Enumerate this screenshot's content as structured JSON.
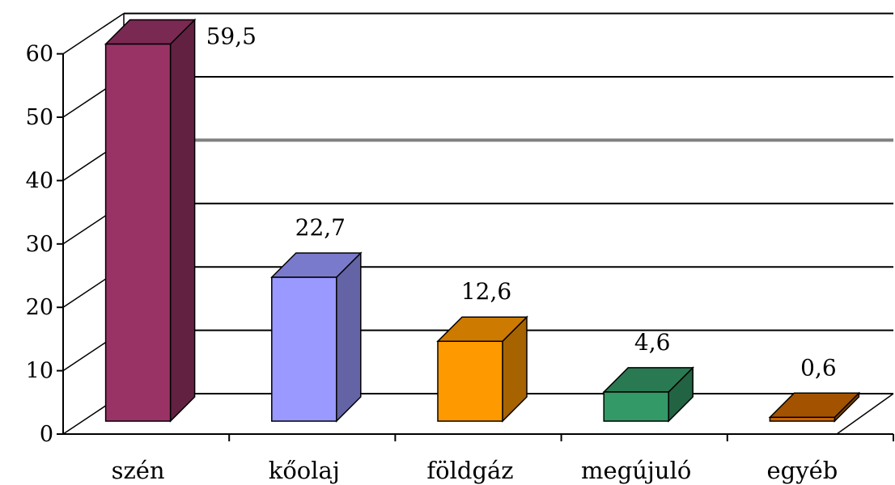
{
  "chart_data": {
    "type": "bar",
    "categories": [
      "szén",
      "kőolaj",
      "földgáz",
      "megújuló",
      "egyéb"
    ],
    "values": [
      59.5,
      22.7,
      12.6,
      4.6,
      0.6
    ],
    "value_labels": [
      "59,5",
      "22,7",
      "12,6",
      "4,6",
      "0,6"
    ],
    "y_ticks": [
      "0",
      "10",
      "20",
      "30",
      "40",
      "50",
      "60"
    ],
    "ylim": [
      0,
      60
    ],
    "title": "",
    "xlabel": "",
    "ylabel": "",
    "grid": true,
    "legend": "none",
    "three_d": true,
    "colors": {
      "front": [
        "#993366",
        "#9999ff",
        "#ff9900",
        "#339966",
        "#cc6600"
      ],
      "side": [
        "#632142",
        "#6363a6",
        "#a66300",
        "#216342",
        "#844200"
      ],
      "top": [
        "#7a2952",
        "#7a7acc",
        "#cc7a00",
        "#297a52",
        "#a35200"
      ],
      "gridline": "#000000",
      "gridline_highlight": "#808080"
    }
  }
}
